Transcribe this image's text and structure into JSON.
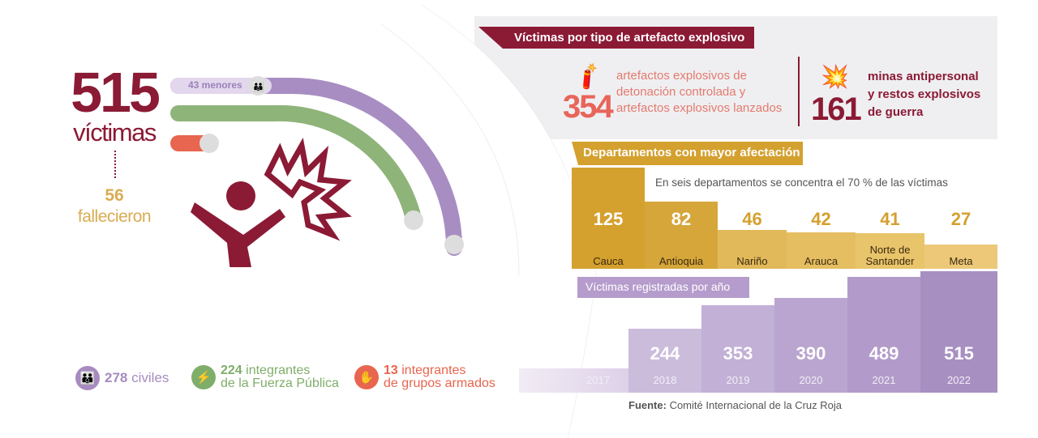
{
  "left": {
    "total": "515",
    "total_label": "víctimas",
    "deaths": "56",
    "deaths_label": "fallecieron",
    "minors": "43 menores"
  },
  "legend": [
    {
      "value": "278",
      "label": "civiles",
      "color": "#a78bc0",
      "icon": "family-icon"
    },
    {
      "value": "224",
      "label_1": "integrantes",
      "label_2": "de la Fuerza Pública",
      "color": "#7fae6a",
      "icon": "soldier-icon"
    },
    {
      "value": "13",
      "label_1": "integrantes",
      "label_2": "de grupos armados",
      "color": "#e8654f",
      "icon": "armed-group-icon"
    }
  ],
  "type_section": {
    "title": "Víctimas por tipo de artefacto explosivo",
    "a": {
      "value": "354",
      "lines": [
        "artefactos explosivos de",
        "detonación controlada y",
        "artefactos explosivos lanzados"
      ],
      "icon": "dynamite-icon"
    },
    "b": {
      "value": "161",
      "lines": [
        "minas antipersonal",
        "y restos explosivos",
        "de guerra"
      ],
      "icon": "landmine-icon"
    }
  },
  "dept_section": {
    "title": "Departamentos con mayor afectación",
    "subtitle": "En seis departamentos se concentra el 70 % de las víctimas"
  },
  "year_section": {
    "title": "Víctimas registradas por año"
  },
  "source": {
    "label": "Fuente:",
    "text": " Comité Internacional de la Cruz Roja"
  },
  "colors": {
    "maroon": "#8b1a35",
    "gold": "#d4a02e",
    "lavender": "#b59ccc",
    "coral": "#e8655a"
  },
  "chart_data": [
    {
      "type": "bar",
      "title": "Departamentos con mayor afectación",
      "categories": [
        "Cauca",
        "Antioquia",
        "Nariño",
        "Arauca",
        "Norte de Santander",
        "Meta"
      ],
      "values": [
        125,
        82,
        46,
        42,
        41,
        27
      ]
    },
    {
      "type": "bar",
      "title": "Víctimas registradas por año",
      "categories": [
        "2017",
        "2018",
        "2019",
        "2020",
        "2021",
        "2022"
      ],
      "values": [
        57,
        244,
        353,
        390,
        489,
        515
      ]
    }
  ]
}
